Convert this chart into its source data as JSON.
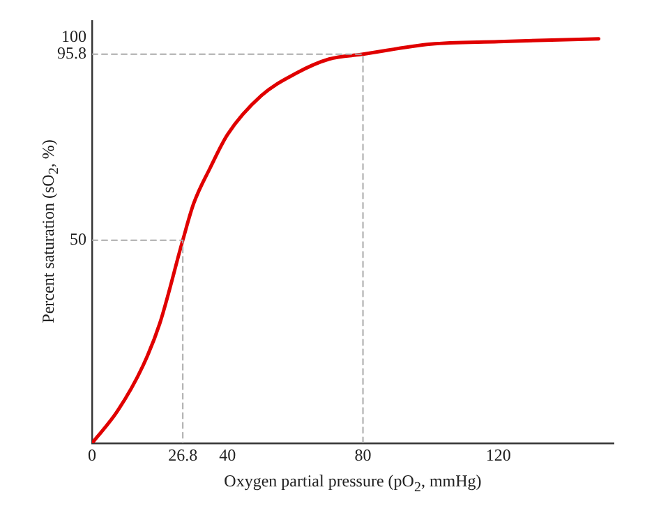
{
  "chart_data": {
    "type": "line",
    "xlabel": "Oxygen partial pressure (pO$_{2}$, mmHg)",
    "ylabel": "Percent saturation (sO$_{2}$, %)",
    "xlim": [
      0,
      154
    ],
    "ylim": [
      0,
      104
    ],
    "xticks": [
      0,
      26.8,
      40,
      80,
      120
    ],
    "yticks": [
      50,
      95.8,
      100
    ],
    "grid": false,
    "legend": false,
    "marker": "none",
    "series": [
      {
        "color": "#e00000",
        "x": [
          0,
          7.5,
          15,
          20,
          26.8,
          30,
          35,
          40,
          50,
          60,
          70,
          80,
          100,
          120,
          149.6
        ],
        "values": [
          0,
          7.9,
          19,
          29.5,
          50,
          59,
          68,
          76,
          85.6,
          91,
          94.6,
          95.8,
          98.3,
          98.9,
          99.6
        ]
      },
      {
        "color": "#aaaaaa",
        "line_style": "dashed",
        "x": [
          0,
          26.8,
          26.8
        ],
        "values": [
          50,
          50,
          0
        ]
      },
      {
        "color": "#aaaaaa",
        "line_style": "dashed",
        "x": [
          0,
          80,
          80
        ],
        "values": [
          95.8,
          95.8,
          0
        ]
      }
    ]
  }
}
